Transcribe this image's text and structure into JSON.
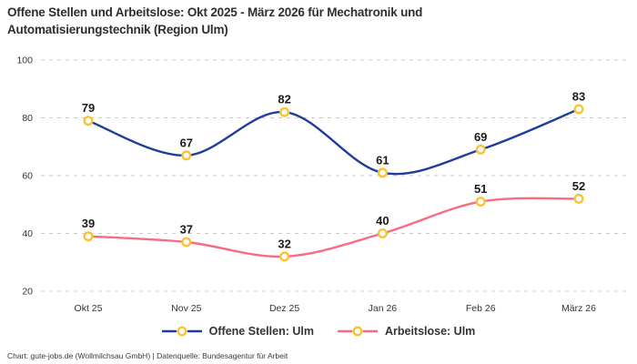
{
  "title_lines": [
    "Offene Stellen und Arbeitslose: Okt 2025 - März 2026 für Mechatronik und",
    "Automatisierungstechnik (Region Ulm)"
  ],
  "footer": "Chart: gute-jobs.de (Wollmilchsau GmbH) | Datenquelle: Bundesagentur für Arbeit",
  "chart_data": {
    "type": "line",
    "title": "Offene Stellen und Arbeitslose: Okt 2025 - März 2026 für Mechatronik und Automatisierungstechnik (Region Ulm)",
    "categories": [
      "Okt 25",
      "Nov 25",
      "Dez 25",
      "Jan 26",
      "Feb 26",
      "März 26"
    ],
    "series": [
      {
        "name": "Offene Stellen: Ulm",
        "values": [
          79,
          67,
          82,
          61,
          69,
          83
        ],
        "color": "#1f3d9b"
      },
      {
        "name": "Arbeitslose: Ulm",
        "values": [
          39,
          37,
          32,
          40,
          51,
          52
        ],
        "color": "#f96b80"
      }
    ],
    "yticks": [
      20,
      40,
      60,
      80,
      100
    ],
    "ylim": [
      20,
      100
    ],
    "grid": "horizontal-dashed",
    "legend_position": "bottom",
    "marker": {
      "shape": "circle",
      "fill": "#ffffff",
      "stroke": "#fcc331"
    },
    "colors": {
      "grid": "#cbcbcb",
      "axis_text": "#333333",
      "value_label": "#1b1b1b"
    }
  }
}
